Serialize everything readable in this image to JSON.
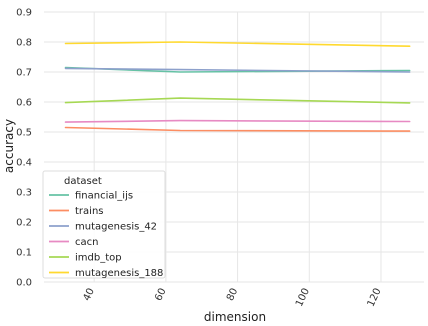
{
  "chart_data": {
    "type": "line",
    "xlabel": "dimension",
    "ylabel": "accuracy",
    "xlim": [
      26,
      132
    ],
    "ylim": [
      0,
      0.9
    ],
    "x_ticks": [
      40,
      60,
      80,
      100,
      120
    ],
    "x_tick_labels": [
      "40",
      "60",
      "80",
      "100",
      "120"
    ],
    "y_ticks": [
      0.0,
      0.1,
      0.2,
      0.3,
      0.4,
      0.5,
      0.6,
      0.7,
      0.8,
      0.9
    ],
    "y_tick_labels": [
      "0.0",
      "0.1",
      "0.2",
      "0.3",
      "0.4",
      "0.5",
      "0.6",
      "0.7",
      "0.8",
      "0.9"
    ],
    "grid": true,
    "legend": {
      "title": "dataset",
      "placement": "lower-left"
    },
    "x": [
      32,
      64,
      128
    ],
    "series": [
      {
        "name": "financial_ijs",
        "color": "#66c2a5",
        "values": [
          0.715,
          0.7,
          0.705
        ]
      },
      {
        "name": "trains",
        "color": "#fc8d62",
        "values": [
          0.515,
          0.505,
          0.503
        ]
      },
      {
        "name": "mutagenesis_42",
        "color": "#8da0cb",
        "values": [
          0.712,
          0.708,
          0.7
        ]
      },
      {
        "name": "cacn",
        "color": "#e78ac3",
        "values": [
          0.533,
          0.538,
          0.535
        ]
      },
      {
        "name": "imdb_top",
        "color": "#a6d854",
        "values": [
          0.598,
          0.613,
          0.597
        ]
      },
      {
        "name": "mutagenesis_188",
        "color": "#ffd92f",
        "values": [
          0.795,
          0.8,
          0.786
        ]
      }
    ]
  }
}
